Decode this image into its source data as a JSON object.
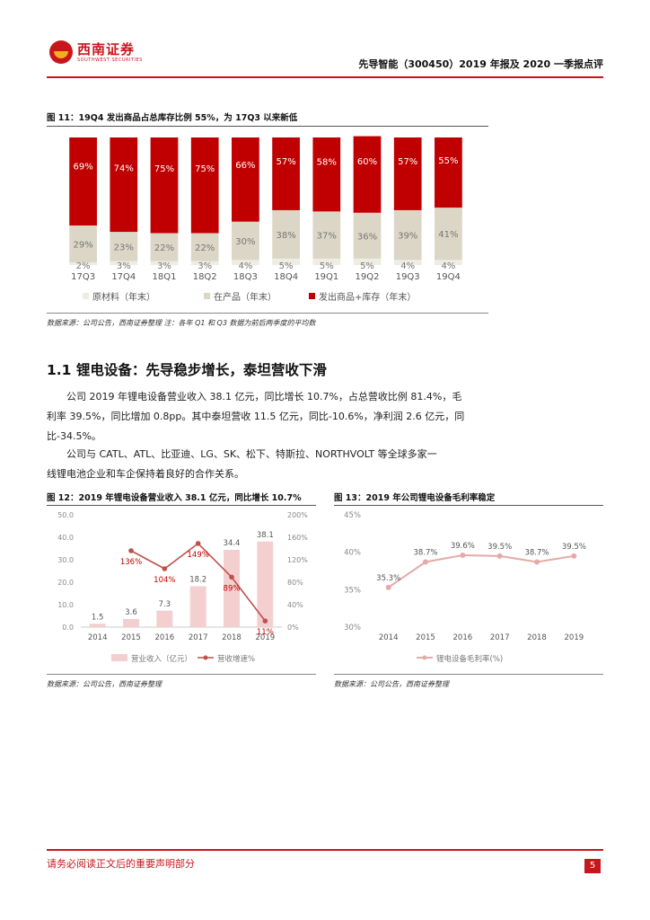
{
  "header": {
    "logo_cn": "西南证券",
    "logo_en": "SOUTHWEST SECURITIES",
    "report_title": "先导智能（300450）2019 年报及 2020 一季报点评"
  },
  "fig11": {
    "caption": "图 11：19Q4 发出商品占总库存比例 55%，为 17Q3 以来新低",
    "source": "数据来源：公司公告，西南证券整理    注：各年 Q1 和 Q3 数据为前后两季度的平均数"
  },
  "section": {
    "title": "1.1  锂电设备：先导稳步增长，泰坦营收下滑",
    "para1": [
      "公司 2019 年锂电设备营业收入 38.1 亿元，同比增长 10.7%，占总营收比例 81.4%，毛",
      "利率 39.5%，同比增加 0.8pp。其中泰坦营收 11.5 亿元，同比-10.6%，净利润 2.6 亿元，同",
      "比-34.5%。"
    ],
    "para2": [
      "公司与 CATL、ATL、比亚迪、LG、SK、松下、特斯拉、NORTHVOLT 等全球多家一",
      "线锂电池企业和车企保持着良好的合作关系。"
    ]
  },
  "fig12": {
    "caption": "图 12：2019 年锂电设备营业收入 38.1 亿元，同比增长 10.7%",
    "source": "数据来源：公司公告，西南证券整理"
  },
  "fig13": {
    "caption": "图 13：2019 年公司锂电设备毛利率稳定",
    "source": "数据来源：公司公告，西南证券整理"
  },
  "footer": {
    "disclaimer": "请务必阅读正文后的重要声明部分",
    "page": "5"
  },
  "colors": {
    "brand_red": "#c8161d",
    "bar_red": "#c00000",
    "beige": "#dcd6c6",
    "light_beige": "#efece3",
    "pink_bar": "#f3cfcf",
    "line_red": "#c0504d",
    "line_pink": "#e6a9a9"
  },
  "chart_data": [
    {
      "id": "fig11",
      "type": "bar",
      "stacked": true,
      "categories": [
        "17Q3",
        "17Q4",
        "18Q1",
        "18Q2",
        "18Q3",
        "18Q4",
        "19Q1",
        "19Q2",
        "19Q3",
        "19Q4"
      ],
      "series": [
        {
          "name": "原材料（年末）",
          "values": [
            2,
            3,
            3,
            3,
            4,
            5,
            5,
            5,
            4,
            4
          ],
          "labels": [
            "2%",
            "3%",
            "3%",
            "3%",
            "4%",
            "5%",
            "5%",
            "5%",
            "4%",
            "4%"
          ]
        },
        {
          "name": "在产品（年末）",
          "values": [
            29,
            23,
            22,
            22,
            30,
            38,
            37,
            36,
            39,
            41
          ],
          "labels": [
            "29%",
            "23%",
            "22%",
            "22%",
            "30%",
            "38%",
            "37%",
            "36%",
            "39%",
            "41%"
          ]
        },
        {
          "name": "发出商品+库存（年末）",
          "values": [
            69,
            74,
            75,
            75,
            66,
            57,
            58,
            60,
            57,
            55
          ],
          "labels": [
            "69%",
            "74%",
            "75%",
            "75%",
            "66%",
            "57%",
            "58%",
            "60%",
            "57%",
            "55%"
          ]
        }
      ],
      "legend": "bottom"
    },
    {
      "id": "fig12",
      "type": "bar",
      "categories": [
        "2014",
        "2015",
        "2016",
        "2017",
        "2018",
        "2019"
      ],
      "series": [
        {
          "name": "营业收入（亿元）",
          "type": "bar",
          "axis": "left",
          "values": [
            1.5,
            3.6,
            7.3,
            18.2,
            34.4,
            38.1
          ],
          "labels": [
            "1.5",
            "3.6",
            "7.3",
            "18.2",
            "34.4",
            "38.1"
          ]
        },
        {
          "name": "营收增速%",
          "type": "line",
          "axis": "right",
          "values": [
            null,
            136,
            104,
            149,
            89,
            11
          ],
          "labels": [
            "",
            "136%",
            "104%",
            "149%",
            "89%",
            "11%"
          ]
        }
      ],
      "y_left_ticks": [
        "0.0",
        "10.0",
        "20.0",
        "30.0",
        "40.0",
        "50.0"
      ],
      "y_right_ticks": [
        "0%",
        "40%",
        "80%",
        "120%",
        "160%",
        "200%"
      ],
      "y_left_range": [
        0,
        50
      ],
      "y_right_range": [
        0,
        200
      ],
      "legend": "bottom"
    },
    {
      "id": "fig13",
      "type": "line",
      "categories": [
        "2014",
        "2015",
        "2016",
        "2017",
        "2018",
        "2019"
      ],
      "series": [
        {
          "name": "锂电设备毛利率(%)",
          "values": [
            35.3,
            38.7,
            39.6,
            39.5,
            38.7,
            39.5
          ],
          "labels": [
            "35.3%",
            "38.7%",
            "39.6%",
            "39.5%",
            "38.7%",
            "39.5%"
          ]
        }
      ],
      "y_ticks": [
        "30%",
        "35%",
        "40%",
        "45%"
      ],
      "y_range": [
        30,
        45
      ],
      "legend": "bottom"
    }
  ]
}
